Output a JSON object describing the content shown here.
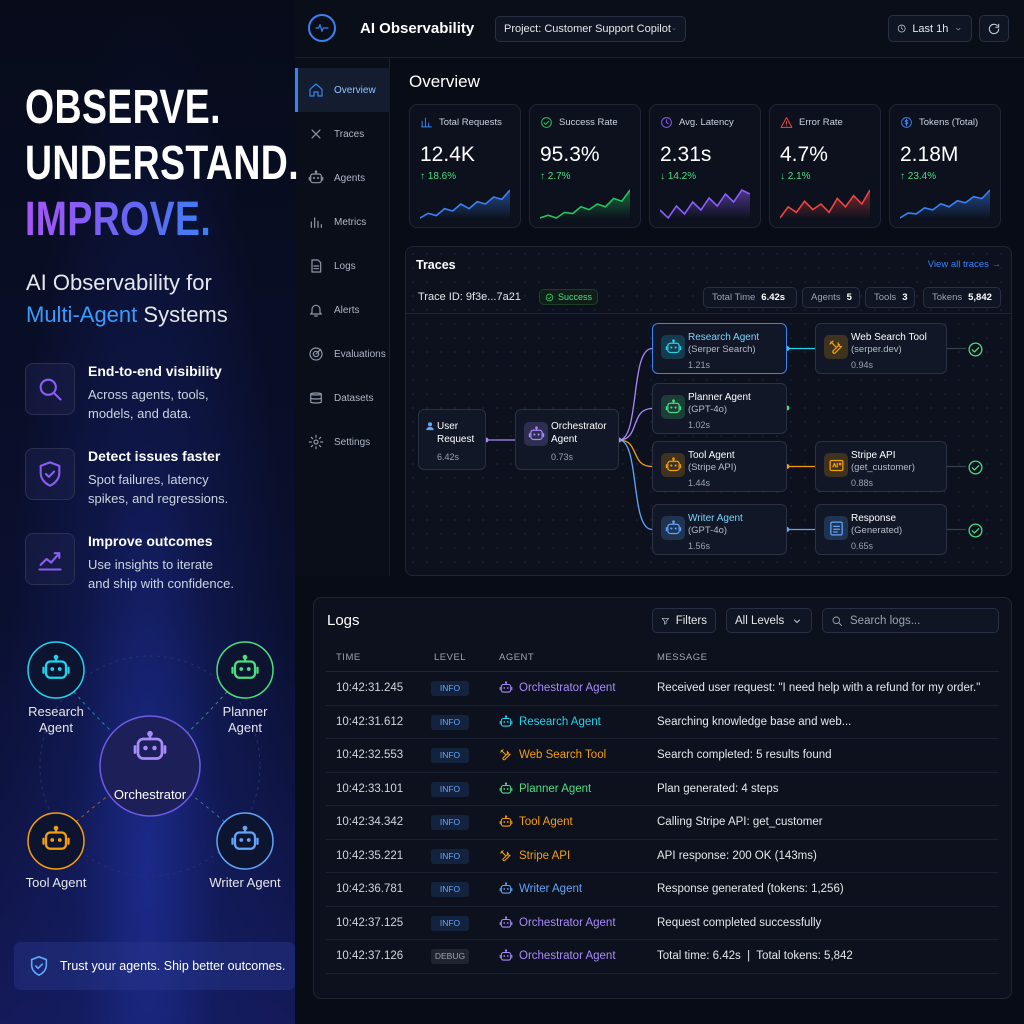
{
  "hero": {
    "title_lines": [
      "OBSERVE.",
      "UNDERSTAND.",
      "IMPROVE."
    ],
    "subtitle": [
      "AI Observability for",
      "Multi-Agent",
      "Systems"
    ],
    "features": [
      {
        "title": "End-to-end visibility",
        "desc": "Across agents, tools, models, and data."
      },
      {
        "title": "Detect issues faster",
        "desc": "Spot failures, latency spikes, and regressions."
      },
      {
        "title": "Improve outcomes",
        "desc": "Use insights to iterate and ship with confidence."
      }
    ],
    "diagram": {
      "center": "Orchestrator",
      "agents": [
        {
          "label": "Research Agent",
          "color": "#22d3ee"
        },
        {
          "label": "Planner Agent",
          "color": "#4ade80"
        },
        {
          "label": "Tool Agent",
          "color": "#f59e0b"
        },
        {
          "label": "Writer Agent",
          "color": "#60a5fa"
        }
      ]
    },
    "footer": "Trust your agents. Ship better outcomes."
  },
  "header": {
    "app_name": "AI Observability",
    "project": "Project: Customer Support Copilot",
    "time_range": "Last 1h"
  },
  "nav": [
    "Overview",
    "Traces",
    "Agents",
    "Metrics",
    "Logs",
    "Alerts",
    "Evaluations",
    "Datasets",
    "Settings"
  ],
  "overview": {
    "title": "Overview",
    "kpis": [
      {
        "label": "Total Requests",
        "value": "12.4K",
        "delta": "↑ 18.6%",
        "color": "#3b82f6",
        "sparkline": [
          3,
          4,
          3.5,
          5,
          4.5,
          6,
          5,
          6.5,
          6,
          7.5,
          7,
          9
        ]
      },
      {
        "label": "Success Rate",
        "value": "95.3%",
        "delta": "↑ 2.7%",
        "color": "#22c55e",
        "sparkline": [
          3,
          3.5,
          3,
          4,
          3.8,
          5,
          4.5,
          5.5,
          5,
          6.5,
          6,
          8
        ]
      },
      {
        "label": "Avg. Latency",
        "value": "2.31s",
        "delta": "↓ 14.2%",
        "color": "#8b5cf6",
        "sparkline": [
          5,
          4,
          5.5,
          4.5,
          6,
          5,
          6.5,
          5.5,
          7,
          6,
          7.5,
          7
        ]
      },
      {
        "label": "Error Rate",
        "value": "4.7%",
        "delta": "↓ 2.1%",
        "color": "#ef4444",
        "sparkline": [
          3,
          5,
          4,
          6,
          4.5,
          5.5,
          4,
          6.5,
          5,
          7,
          5.5,
          8
        ]
      },
      {
        "label": "Tokens (Total)",
        "value": "2.18M",
        "delta": "↑ 23.4%",
        "color": "#3b82f6",
        "sparkline": [
          3,
          4,
          3.8,
          5,
          4.6,
          5.8,
          5.2,
          6.4,
          6,
          7.2,
          6.8,
          8.5
        ]
      }
    ]
  },
  "traces": {
    "title": "Traces",
    "link": "View all traces →",
    "trace_id": "Trace ID: 9f3e...7a21",
    "status": "Success",
    "stats": [
      {
        "label": "Total Time",
        "value": "6.42s"
      },
      {
        "label": "Agents",
        "value": "5"
      },
      {
        "label": "Tools",
        "value": "3"
      },
      {
        "label": "Tokens",
        "value": "5,842"
      }
    ],
    "nodes": [
      {
        "title": "User Request",
        "duration": "6.42s",
        "color": "#60a5fa"
      },
      {
        "title": "Orchestrator Agent",
        "duration": "0.73s",
        "color": "#a78bfa"
      },
      {
        "title": "Research Agent",
        "subtitle": "(Serper Search)",
        "duration": "1.21s",
        "color": "#22d3ee"
      },
      {
        "title": "Planner Agent",
        "subtitle": "(GPT-4o)",
        "duration": "1.02s",
        "color": "#4ade80"
      },
      {
        "title": "Tool Agent",
        "subtitle": "(Stripe API)",
        "duration": "1.44s",
        "color": "#f59e0b"
      },
      {
        "title": "Writer Agent",
        "subtitle": "(GPT-4o)",
        "duration": "1.56s",
        "color": "#60a5fa"
      },
      {
        "title": "Web Search Tool",
        "subtitle": "(serper.dev)",
        "duration": "0.94s",
        "color": "#f59e0b"
      },
      {
        "title": "Stripe API",
        "subtitle": "(get_customer)",
        "duration": "0.88s",
        "color": "#f59e0b"
      },
      {
        "title": "Response",
        "subtitle": "(Generated)",
        "duration": "0.65s",
        "color": "#60a5fa"
      }
    ]
  },
  "logs": {
    "title": "Logs",
    "filters": "Filters",
    "level_filter": "All Levels",
    "search": "Search logs...",
    "columns": [
      "TIME",
      "LEVEL",
      "AGENT",
      "MESSAGE"
    ],
    "rows": [
      {
        "time": "10:42:31.245",
        "level": "INFO",
        "agent": "Orchestrator Agent",
        "color": "#a78bfa",
        "icon": "robot",
        "message": "Received user request: \"I need help with a refund for my order.\""
      },
      {
        "time": "10:42:31.612",
        "level": "INFO",
        "agent": "Research Agent",
        "color": "#22d3ee",
        "icon": "robot",
        "message": "Searching knowledge base and web..."
      },
      {
        "time": "10:42:32.553",
        "level": "INFO",
        "agent": "Web Search Tool",
        "color": "#f59e0b",
        "icon": "tool",
        "message": "Search completed: 5 results found"
      },
      {
        "time": "10:42:33.101",
        "level": "INFO",
        "agent": "Planner Agent",
        "color": "#4ade80",
        "icon": "robot",
        "message": "Plan generated: 4 steps"
      },
      {
        "time": "10:42:34.342",
        "level": "INFO",
        "agent": "Tool Agent",
        "color": "#f59e0b",
        "icon": "robot",
        "message": "Calling Stripe API: get_customer"
      },
      {
        "time": "10:42:35.221",
        "level": "INFO",
        "agent": "Stripe API",
        "color": "#f59e0b",
        "icon": "tool",
        "message": "API response: 200 OK (143ms)"
      },
      {
        "time": "10:42:36.781",
        "level": "INFO",
        "agent": "Writer Agent",
        "color": "#60a5fa",
        "icon": "robot",
        "message": "Response generated (tokens: 1,256)"
      },
      {
        "time": "10:42:37.125",
        "level": "INFO",
        "agent": "Orchestrator Agent",
        "color": "#a78bfa",
        "icon": "robot",
        "message": "Request completed successfully"
      },
      {
        "time": "10:42:37.126",
        "level": "DEBUG",
        "agent": "Orchestrator Agent",
        "color": "#a78bfa",
        "icon": "robot",
        "message": "Total time: 6.42s  |  Total tokens: 5,842"
      }
    ]
  }
}
